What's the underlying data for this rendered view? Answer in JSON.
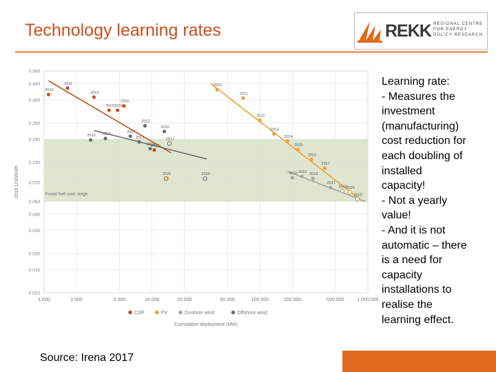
{
  "slide": {
    "title": "Technology learning rates",
    "source": "Source: Irena 2017",
    "colors": {
      "title": "#c8501e",
      "accent": "#e06a1e"
    }
  },
  "logo": {
    "name": "REKK",
    "sub_lines": [
      "REGIONAL CENTRE",
      "FOR ENERGY",
      "POLICY RESEARCH"
    ],
    "icon": "rekk-flame-logo"
  },
  "notes": {
    "lines": [
      "Learning rate:",
      "- Measures the",
      "investment",
      "(manufacturing)",
      "cost reduction for",
      "each doubling of",
      "installed",
      "capacity!",
      "- Not a yearly",
      "value!",
      "- And it is not",
      "automatic – there",
      "is a need for",
      "capacity",
      "installations to",
      "realise the",
      "learning effect."
    ]
  },
  "chart_data": {
    "type": "scatter",
    "x_scale": "log",
    "y_scale": "log",
    "xlim": [
      1000,
      1000000
    ],
    "ylim": [
      0.01,
      0.5
    ],
    "grid": true,
    "legend_placement": "bottom",
    "xlabel": "Cumulative deployment (MW)",
    "ylabel": "2016 USD/kWh",
    "x_ticks": [
      {
        "v": 1000,
        "label": "1 000"
      },
      {
        "v": 2000,
        "label": "2 000"
      },
      {
        "v": 5000,
        "label": "5 000"
      },
      {
        "v": 10000,
        "label": "10 000"
      },
      {
        "v": 20000,
        "label": "20 000"
      },
      {
        "v": 50000,
        "label": "50 000"
      },
      {
        "v": 100000,
        "label": "100 000"
      },
      {
        "v": 200000,
        "label": "200 000"
      },
      {
        "v": 500000,
        "label": "500 000"
      },
      {
        "v": 1000000,
        "label": "1 000 000"
      }
    ],
    "y_ticks": [
      {
        "v": 0.5,
        "label": "0.500"
      },
      {
        "v": 0.4,
        "label": "0.400"
      },
      {
        "v": 0.3,
        "label": "0.300"
      },
      {
        "v": 0.2,
        "label": "0.200"
      },
      {
        "v": 0.15,
        "label": "0.150"
      },
      {
        "v": 0.1,
        "label": "0.100"
      },
      {
        "v": 0.07,
        "label": "0.070"
      },
      {
        "v": 0.05,
        "label": "0.050"
      },
      {
        "v": 0.04,
        "label": "0.040"
      },
      {
        "v": 0.03,
        "label": "0.030"
      },
      {
        "v": 0.02,
        "label": "0.020"
      },
      {
        "v": 0.015,
        "label": "0.015"
      },
      {
        "v": 0.01,
        "label": "0.010"
      }
    ],
    "band": {
      "label": "Fossil fuel cost range",
      "y_min": 0.05,
      "y_max": 0.15,
      "color": "#dfe6cf"
    },
    "series": [
      {
        "name": "CSP",
        "color": "#c4501a",
        "points": [
          {
            "x": 1100,
            "y": 0.33,
            "label": "2010"
          },
          {
            "x": 1650,
            "y": 0.37,
            "label": "2011"
          },
          {
            "x": 2900,
            "y": 0.315,
            "label": "2012"
          },
          {
            "x": 4000,
            "y": 0.25,
            "label": "2013"
          },
          {
            "x": 4800,
            "y": 0.25,
            "label": "2016"
          },
          {
            "x": 5500,
            "y": 0.27,
            "label": "2015"
          },
          {
            "x": 10500,
            "y": 0.124,
            "label": "2014"
          },
          {
            "x": 13500,
            "y": 0.075,
            "label": "2020",
            "hollow": true
          }
        ],
        "trend": [
          {
            "x": 1100,
            "y": 0.42
          },
          {
            "x": 15000,
            "y": 0.118
          }
        ]
      },
      {
        "name": "PV",
        "color": "#f0a030",
        "points": [
          {
            "x": 40000,
            "y": 0.36,
            "label": "2010"
          },
          {
            "x": 70000,
            "y": 0.31,
            "label": "2011"
          },
          {
            "x": 100000,
            "y": 0.21,
            "label": "2012"
          },
          {
            "x": 135000,
            "y": 0.165,
            "label": "2013"
          },
          {
            "x": 180000,
            "y": 0.145,
            "label": "2014"
          },
          {
            "x": 225000,
            "y": 0.125,
            "label": "2015"
          },
          {
            "x": 300000,
            "y": 0.105,
            "label": "2016"
          },
          {
            "x": 400000,
            "y": 0.09,
            "label": "2017"
          },
          {
            "x": 680000,
            "y": 0.059,
            "label": "2020",
            "hollow": true
          }
        ],
        "trend": [
          {
            "x": 35000,
            "y": 0.4
          },
          {
            "x": 900000,
            "y": 0.05
          }
        ]
      },
      {
        "name": "Onshore wind",
        "color": "#a9a49d",
        "points": [
          {
            "x": 200000,
            "y": 0.076,
            "label": "2010"
          },
          {
            "x": 245000,
            "y": 0.078,
            "label": "2015"
          },
          {
            "x": 310000,
            "y": 0.075,
            "label": "2016"
          },
          {
            "x": 450000,
            "y": 0.064,
            "label": "2017"
          },
          {
            "x": 580000,
            "y": 0.06,
            "label": "2018",
            "hollow": true
          },
          {
            "x": 800000,
            "y": 0.052,
            "label": "2020",
            "hollow": true
          }
        ],
        "trend": [
          {
            "x": 180000,
            "y": 0.085
          },
          {
            "x": 950000,
            "y": 0.05
          }
        ]
      },
      {
        "name": "Offshore wind",
        "color": "#6b6b6b",
        "points": [
          {
            "x": 2700,
            "y": 0.148,
            "label": "2010"
          },
          {
            "x": 3700,
            "y": 0.152,
            "label": "2012"
          },
          {
            "x": 6300,
            "y": 0.158,
            "label": "2017"
          },
          {
            "x": 7600,
            "y": 0.143,
            "label": "2013"
          },
          {
            "x": 8600,
            "y": 0.19,
            "label": "2015"
          },
          {
            "x": 9600,
            "y": 0.127,
            "label": "2014"
          },
          {
            "x": 13000,
            "y": 0.172,
            "label": "2016"
          },
          {
            "x": 14500,
            "y": 0.139,
            "label": "2017",
            "hollow": true
          },
          {
            "x": 31000,
            "y": 0.075,
            "label": "2020",
            "hollow": true
          }
        ],
        "trend": [
          {
            "x": 2900,
            "y": 0.175
          },
          {
            "x": 32000,
            "y": 0.106
          }
        ]
      }
    ]
  }
}
